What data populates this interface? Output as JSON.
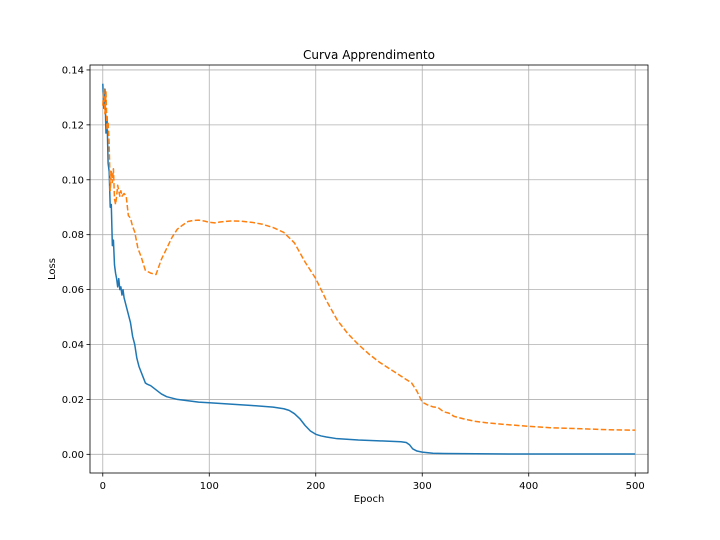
{
  "chart_data": {
    "type": "line",
    "title": "Curva Apprendimento",
    "xlabel": "Epoch",
    "ylabel": "Loss",
    "xlim": [
      -12,
      512
    ],
    "ylim": [
      -0.0068,
      0.1418
    ],
    "xticks": [
      0,
      100,
      200,
      300,
      400,
      500
    ],
    "yticks": [
      0.0,
      0.02,
      0.04,
      0.06,
      0.08,
      0.1,
      0.12,
      0.14
    ],
    "xtick_labels": [
      "0",
      "100",
      "200",
      "300",
      "400",
      "500"
    ],
    "ytick_labels": [
      "0.00",
      "0.02",
      "0.04",
      "0.06",
      "0.08",
      "0.10",
      "0.12",
      "0.14"
    ],
    "grid": true,
    "legend": "none",
    "series": [
      {
        "color": "#1f77b4",
        "style": "solid",
        "x": [
          0,
          1,
          2,
          3,
          4,
          5,
          6,
          7,
          8,
          9,
          10,
          11,
          12,
          13,
          14,
          15,
          16,
          17,
          18,
          19,
          20,
          22,
          24,
          26,
          28,
          30,
          32,
          34,
          36,
          38,
          40,
          42,
          45,
          50,
          55,
          60,
          70,
          80,
          90,
          100,
          120,
          140,
          160,
          170,
          175,
          180,
          185,
          190,
          195,
          200,
          205,
          210,
          220,
          240,
          260,
          280,
          285,
          288,
          291,
          295,
          300,
          310,
          320,
          350,
          400,
          450,
          500
        ],
        "y": [
          0.135,
          0.126,
          0.133,
          0.117,
          0.123,
          0.106,
          0.103,
          0.09,
          0.091,
          0.076,
          0.078,
          0.069,
          0.066,
          0.064,
          0.061,
          0.064,
          0.06,
          0.061,
          0.058,
          0.06,
          0.057,
          0.054,
          0.051,
          0.048,
          0.043,
          0.04,
          0.035,
          0.032,
          0.03,
          0.028,
          0.026,
          0.0255,
          0.025,
          0.0235,
          0.022,
          0.021,
          0.02,
          0.0195,
          0.019,
          0.0188,
          0.0183,
          0.0178,
          0.0172,
          0.0166,
          0.016,
          0.0148,
          0.013,
          0.0105,
          0.0085,
          0.0073,
          0.0067,
          0.0063,
          0.0057,
          0.0052,
          0.0049,
          0.0046,
          0.0043,
          0.0035,
          0.002,
          0.0012,
          0.0008,
          0.0004,
          0.0003,
          0.0002,
          0.0001,
          0.0001,
          0.0001
        ]
      },
      {
        "color": "#ff7f0e",
        "style": "dashed",
        "x": [
          0,
          1,
          2,
          3,
          4,
          5,
          6,
          7,
          8,
          9,
          10,
          11,
          12,
          13,
          14,
          15,
          16,
          17,
          18,
          20,
          22,
          24,
          26,
          28,
          30,
          33,
          36,
          40,
          45,
          50,
          55,
          60,
          65,
          70,
          75,
          80,
          85,
          90,
          95,
          100,
          105,
          110,
          120,
          130,
          140,
          150,
          160,
          170,
          180,
          190,
          200,
          210,
          220,
          230,
          240,
          250,
          260,
          270,
          280,
          290,
          295,
          300,
          305,
          310,
          315,
          320,
          325,
          330,
          340,
          350,
          360,
          380,
          400,
          420,
          450,
          480,
          500
        ],
        "y": [
          0.127,
          0.133,
          0.124,
          0.132,
          0.118,
          0.121,
          0.113,
          0.096,
          0.103,
          0.099,
          0.104,
          0.093,
          0.091,
          0.094,
          0.098,
          0.096,
          0.094,
          0.096,
          0.094,
          0.095,
          0.094,
          0.087,
          0.086,
          0.083,
          0.081,
          0.075,
          0.072,
          0.067,
          0.066,
          0.0655,
          0.071,
          0.075,
          0.079,
          0.082,
          0.0835,
          0.0848,
          0.0852,
          0.0853,
          0.085,
          0.0845,
          0.0843,
          0.0846,
          0.085,
          0.0849,
          0.0845,
          0.0838,
          0.0826,
          0.0808,
          0.077,
          0.07,
          0.064,
          0.056,
          0.049,
          0.044,
          0.04,
          0.0365,
          0.0335,
          0.031,
          0.0285,
          0.026,
          0.023,
          0.019,
          0.018,
          0.0173,
          0.017,
          0.0155,
          0.015,
          0.0138,
          0.0128,
          0.012,
          0.0115,
          0.0108,
          0.0102,
          0.0097,
          0.0093,
          0.0089,
          0.0088
        ]
      }
    ]
  }
}
